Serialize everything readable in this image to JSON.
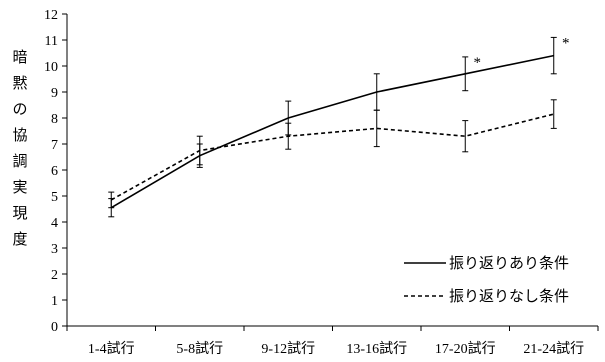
{
  "chart_data": {
    "type": "line",
    "title": "",
    "xlabel": "",
    "ylabel": "暗黙の協調実現度",
    "ylim": [
      0,
      12
    ],
    "yticks": [
      0,
      1,
      2,
      3,
      4,
      5,
      6,
      7,
      8,
      9,
      10,
      11,
      12
    ],
    "categories": [
      "1-4試行",
      "5-8試行",
      "9-12試行",
      "13-16試行",
      "17-20試行",
      "21-24試行"
    ],
    "series": [
      {
        "name": "振り返りあり条件",
        "style": "solid",
        "values": [
          4.55,
          6.55,
          8.0,
          9.0,
          9.7,
          10.4
        ],
        "error": [
          0.35,
          0.45,
          0.65,
          0.7,
          0.65,
          0.7
        ]
      },
      {
        "name": "振り返りなし条件",
        "style": "dashed",
        "values": [
          4.85,
          6.75,
          7.3,
          7.6,
          7.3,
          8.15
        ],
        "error": [
          0.3,
          0.55,
          0.5,
          0.7,
          0.6,
          0.55
        ]
      }
    ],
    "significance": [
      {
        "category": "17-20試行",
        "label": "*"
      },
      {
        "category": "21-24試行",
        "label": "*"
      }
    ],
    "grid": false,
    "legend_position": "bottom-right"
  }
}
